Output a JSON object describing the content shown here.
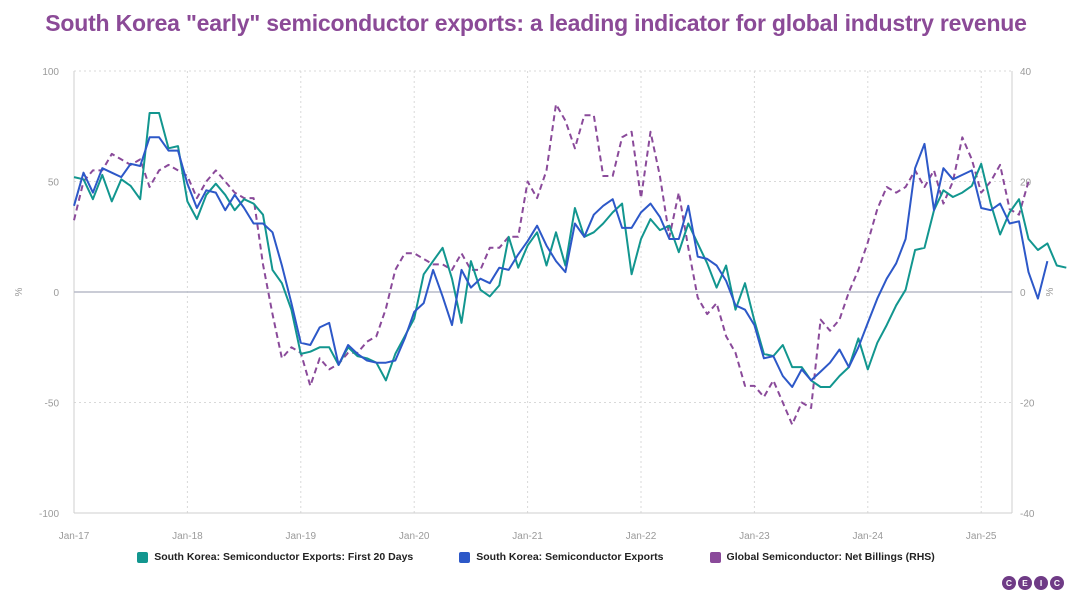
{
  "chart_data": {
    "type": "line",
    "title": "South Korea \"early\" semiconductor exports: a leading indicator for global industry revenue",
    "ylabel": "%",
    "y2label": "%",
    "ylim": [
      -100,
      100
    ],
    "y2lim": [
      -40,
      40
    ],
    "yticks": [
      "100",
      "50",
      "0",
      "-50",
      "-100"
    ],
    "y2ticks": [
      "40",
      "20",
      "0",
      "-20",
      "-40"
    ],
    "xticks": [
      "Jan-17",
      "Jan-18",
      "Jan-19",
      "Jan-20",
      "Jan-21",
      "Jan-22",
      "Jan-23",
      "Jan-24",
      "Jan-25"
    ],
    "x_start": "Jan-17",
    "colors": {
      "first20": "#12968f",
      "exports": "#2d58c8",
      "billings": "#8a4a9a",
      "zero": "#b8bcc8",
      "grid": "#d9d9d9"
    },
    "series": [
      {
        "key": "first20",
        "name": "South Korea: Semiconductor Exports: First 20 Days",
        "axis": "left",
        "start_index": 0,
        "values": [
          52,
          51,
          42,
          53,
          41,
          51,
          48,
          42,
          81,
          81,
          65,
          66,
          41,
          33,
          44,
          49,
          44,
          37,
          42,
          40,
          35,
          10,
          4,
          -8,
          -28,
          -27,
          -25,
          -25,
          -33,
          -25,
          -29,
          -30,
          -32,
          -40,
          -28,
          -20,
          -12,
          8,
          14,
          20,
          6,
          -14,
          14,
          1,
          -2,
          3,
          25,
          11,
          21,
          27,
          12,
          27,
          12,
          38,
          25,
          27,
          31,
          36,
          40,
          8,
          24,
          33,
          28,
          30,
          18,
          31,
          22,
          13,
          2,
          12,
          -8,
          4,
          -13,
          -28,
          -29,
          -24,
          -34,
          -34,
          -40,
          -43,
          -43,
          -38,
          -34,
          -21,
          -35,
          -23,
          -15,
          -6,
          1,
          19,
          20,
          37,
          46,
          43,
          45,
          48,
          58,
          40,
          26,
          36,
          42,
          24,
          19,
          22,
          12,
          11
        ]
      },
      {
        "key": "exports",
        "name": "South Korea: Semiconductor Exports",
        "axis": "left",
        "start_index": 0,
        "values": [
          39,
          54,
          45,
          56,
          54,
          52,
          58,
          57,
          70,
          70,
          64,
          64,
          49,
          38,
          46,
          45,
          37,
          44,
          38,
          31,
          31,
          27,
          12,
          -5,
          -23,
          -24,
          -16,
          -14,
          -33,
          -24,
          -28,
          -31,
          -32,
          -32,
          -31,
          -21,
          -9,
          -5,
          10,
          -2,
          -15,
          10,
          2,
          6,
          4,
          11,
          10,
          17,
          23,
          30,
          21,
          14,
          9,
          31,
          25,
          35,
          39,
          42,
          29,
          29,
          36,
          40,
          34,
          24,
          24,
          39,
          16,
          15,
          12,
          5,
          -6,
          -8,
          -15,
          -30,
          -29,
          -38,
          -43,
          -35,
          -40,
          -36,
          -32,
          -26,
          -34,
          -25,
          -14,
          -3,
          6,
          13,
          24,
          56,
          67,
          37,
          56,
          51,
          53,
          55,
          38,
          37,
          40,
          31,
          32,
          9,
          -3,
          14
        ]
      },
      {
        "key": "billings",
        "name": "Global Semiconductor: Net Billings (RHS)",
        "axis": "right",
        "start_index": 0,
        "values": [
          13,
          20,
          22,
          22,
          25,
          24,
          23,
          24,
          19,
          22,
          23,
          22,
          21,
          17,
          20,
          22,
          20,
          18,
          17,
          17,
          5,
          -4,
          -12,
          -10,
          -11,
          -17,
          -12,
          -14,
          -13,
          -11,
          -11,
          -9,
          -8,
          -3,
          4,
          7,
          7,
          6,
          5,
          5,
          4,
          7,
          4,
          4,
          8,
          8,
          10,
          10,
          20,
          17,
          22,
          34,
          31,
          26,
          32,
          32,
          21,
          21,
          28,
          29,
          17,
          29,
          21,
          10,
          18,
          8,
          -1,
          -4,
          -2,
          -8,
          -11,
          -17,
          -17,
          -19,
          -16,
          -20,
          -24,
          -20,
          -21,
          -5,
          -7,
          -5,
          0,
          4,
          9,
          15,
          19,
          18,
          19,
          22,
          19,
          22,
          16,
          20,
          28,
          24,
          18,
          20,
          23,
          15,
          14,
          20
        ]
      }
    ],
    "legend_placement": "bottom"
  },
  "logo_letters": [
    "C",
    "E",
    "I",
    "C"
  ]
}
